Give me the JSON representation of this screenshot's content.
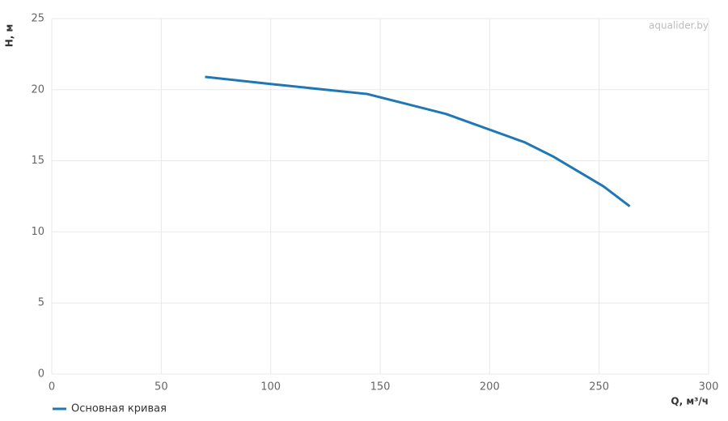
{
  "chart_data": {
    "type": "line",
    "x_label": "Q, м³/ч",
    "y_label": "H, м",
    "watermark": "aqualider.by",
    "x": [
      70,
      100,
      144,
      180,
      216,
      229,
      252,
      264
    ],
    "series": [
      {
        "name": "Основная кривая",
        "color": "#1f77b4",
        "values": [
          20.9,
          20.4,
          19.7,
          18.3,
          16.3,
          15.3,
          13.2,
          11.8
        ]
      }
    ],
    "xlim": [
      0,
      300
    ],
    "xticks": [
      0,
      50,
      100,
      150,
      200,
      250,
      300
    ],
    "ylim": [
      0,
      25
    ],
    "yticks": [
      0,
      5,
      10,
      15,
      20,
      25
    ],
    "grid": true
  }
}
